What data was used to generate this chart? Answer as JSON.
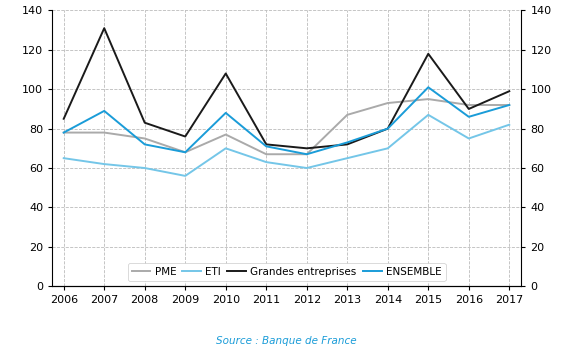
{
  "years": [
    2006,
    2007,
    2008,
    2009,
    2010,
    2011,
    2012,
    2013,
    2014,
    2015,
    2016,
    2017
  ],
  "PME": [
    78,
    78,
    75,
    68,
    77,
    67,
    67,
    87,
    93,
    95,
    92,
    92
  ],
  "ETI": [
    65,
    62,
    60,
    56,
    70,
    63,
    60,
    65,
    70,
    87,
    75,
    82
  ],
  "Grandes_entreprises": [
    85,
    131,
    83,
    76,
    108,
    72,
    70,
    72,
    80,
    118,
    90,
    99
  ],
  "ENSEMBLE": [
    78,
    89,
    72,
    68,
    88,
    71,
    67,
    73,
    80,
    101,
    86,
    92
  ],
  "colors": {
    "PME": "#aaaaaa",
    "ETI": "#74c6e8",
    "Grandes_entreprises": "#1a1a1a",
    "ENSEMBLE": "#1a9cd8"
  },
  "ylim": [
    0,
    140
  ],
  "yticks": [
    0,
    20,
    40,
    60,
    80,
    100,
    120,
    140
  ],
  "source_text": "Source : Banque de France",
  "source_color": "#1a9cd8",
  "background_color": "#ffffff",
  "grid_color": "#bbbbbb",
  "linewidth": 1.4,
  "tick_fontsize": 8,
  "legend_fontsize": 7.5
}
